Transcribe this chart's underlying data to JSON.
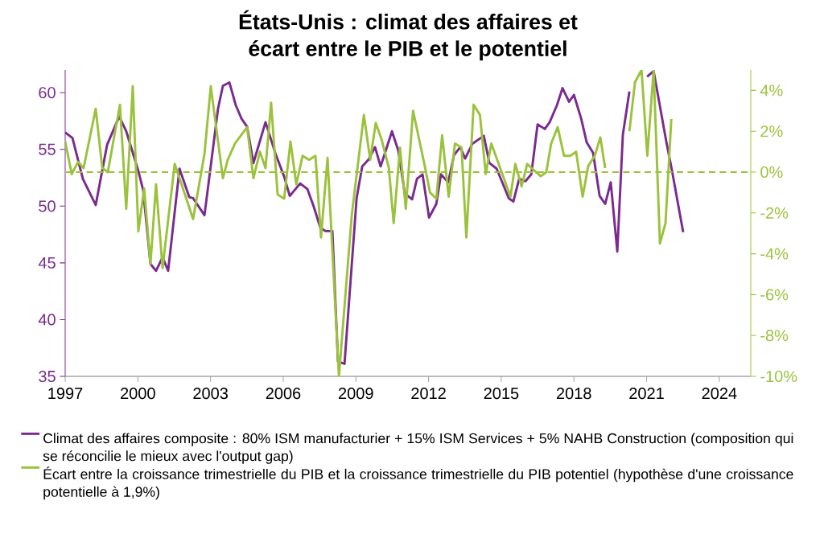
{
  "chart_data": {
    "type": "line",
    "title": "États-Unis : climat des affaires et écart entre le PIB et le potentiel",
    "xlim": [
      1997,
      2025.3
    ],
    "xticks": [
      1997,
      2000,
      2003,
      2006,
      2009,
      2012,
      2015,
      2018,
      2021,
      2024
    ],
    "ylim": [
      35,
      62
    ],
    "yticks": [
      35,
      40,
      45,
      50,
      55,
      60
    ],
    "y2lim": [
      -10,
      5
    ],
    "y2ticks": [
      {
        "value": -10,
        "label": "-10%"
      },
      {
        "value": -8,
        "label": "-8%"
      },
      {
        "value": -6,
        "label": "-6%"
      },
      {
        "value": -4,
        "label": "-4%"
      },
      {
        "value": -2,
        "label": "-2%"
      },
      {
        "value": 0,
        "label": "0%"
      },
      {
        "value": 2,
        "label": "2%"
      },
      {
        "value": 4,
        "label": "4%"
      }
    ],
    "legend": "bottom",
    "ref_lines": [
      {
        "axis": "y2",
        "value": 0,
        "color": "#9bc23c",
        "line_style": "dashed"
      }
    ],
    "series": [
      {
        "name": "Climat des affaires composite : 80% ISM manufacturier + 15% ISM Services + 5% NAHB Construction (composition qui se réconcilie le mieux avec l'output gap)",
        "color": "#7b2a8e",
        "x": [
          1997.0,
          1997.3,
          1997.73,
          1998.26,
          1998.73,
          1999.23,
          1999.52,
          2000.02,
          2000.22,
          2000.52,
          2000.75,
          2001.02,
          2001.25,
          2001.72,
          2002.12,
          2002.28,
          2002.75,
          2003.31,
          2003.51,
          2003.78,
          2004.04,
          2004.28,
          2004.51,
          2004.77,
          2005.27,
          2005.7,
          2006.04,
          2006.27,
          2006.7,
          2007.0,
          2007.27,
          2007.53,
          2007.76,
          2008.03,
          2008.26,
          2008.53,
          2009.03,
          2009.26,
          2009.52,
          2009.79,
          2010.02,
          2010.49,
          2010.75,
          2011.02,
          2011.32,
          2011.52,
          2011.75,
          2012.02,
          2012.32,
          2012.51,
          2012.81,
          2013.05,
          2013.31,
          2013.51,
          2013.81,
          2014.28,
          2014.51,
          2014.81,
          2015.31,
          2015.5,
          2015.74,
          2016.0,
          2016.24,
          2016.5,
          2016.8,
          2017.0,
          2017.3,
          2017.53,
          2017.8,
          2018.0,
          2018.3,
          2018.53,
          2018.79,
          2019.06,
          2019.29,
          2019.52,
          2019.79,
          2020.02,
          2020.29,
          2020.52,
          2020.79,
          2021.02,
          2021.29,
          2021.82,
          2022.05,
          2022.51
        ],
        "values": [
          56.5,
          56.0,
          52.4,
          50.1,
          55.4,
          57.9,
          56.6,
          53.1,
          51.4,
          44.9,
          44.3,
          45.5,
          44.3,
          53.3,
          50.8,
          50.7,
          49.2,
          58.6,
          60.6,
          60.9,
          58.9,
          57.7,
          57.0,
          53.8,
          57.4,
          54.5,
          52.6,
          50.9,
          52.0,
          51.5,
          49.9,
          48.1,
          47.8,
          47.8,
          36.3,
          36.1,
          50.7,
          53.5,
          54.1,
          55.2,
          53.5,
          56.6,
          54.9,
          51.1,
          50.6,
          52.4,
          52.8,
          49.0,
          50.2,
          52.8,
          52.1,
          54.5,
          55.2,
          54.2,
          55.5,
          56.2,
          53.8,
          53.3,
          50.7,
          50.4,
          52.4,
          52.2,
          52.8,
          57.2,
          56.8,
          57.4,
          58.9,
          60.4,
          59.2,
          59.8,
          57.7,
          55.6,
          54.7,
          50.9,
          50.2,
          52.1,
          46.0,
          56.3,
          60.1,
          null,
          null,
          61.4,
          61.9,
          55.6,
          53.1,
          47.7
        ]
      },
      {
        "name": "Écart entre la croissance trimestrielle du PIB et la croissance trimestrielle du PIB potentiel (hypothèse d'une croissance potentielle à 1,9%)",
        "color": "#9bc23c",
        "axis": "y2",
        "x": [
          1997.0,
          1997.27,
          1997.53,
          1997.76,
          1998.26,
          1998.53,
          1998.76,
          1999.26,
          1999.52,
          1999.79,
          2000.02,
          2000.26,
          2000.52,
          2000.75,
          2001.02,
          2001.52,
          2001.72,
          2002.28,
          2002.75,
          2003.01,
          2003.51,
          2003.71,
          2004.01,
          2004.51,
          2004.77,
          2005.04,
          2005.27,
          2005.5,
          2005.77,
          2006.04,
          2006.3,
          2006.54,
          2006.8,
          2007.07,
          2007.33,
          2007.56,
          2007.83,
          2008.3,
          2008.83,
          2009.33,
          2009.59,
          2009.82,
          2010.06,
          2010.36,
          2010.56,
          2010.82,
          2011.06,
          2011.36,
          2011.86,
          2012.06,
          2012.32,
          2012.56,
          2012.83,
          2013.09,
          2013.36,
          2013.56,
          2013.86,
          2014.12,
          2014.36,
          2014.59,
          2015.38,
          2015.58,
          2015.84,
          2016.07,
          2016.34,
          2016.63,
          2016.86,
          2017.06,
          2017.33,
          2017.59,
          2017.86,
          2018.09,
          2018.36,
          2018.59,
          2018.86,
          2019.09,
          2019.29,
          2019.52,
          2019.79,
          2020.02,
          2020.29,
          2020.52,
          2020.79,
          2021.03,
          2021.29,
          2021.55,
          2021.78,
          2022.02
        ],
        "values": [
          1.5,
          -0.1,
          0.5,
          0.2,
          3.1,
          0.2,
          0.0,
          3.3,
          -1.8,
          4.2,
          -2.9,
          -0.8,
          -4.5,
          -0.6,
          -4.7,
          0.4,
          -0.3,
          -2.3,
          0.9,
          4.2,
          -0.3,
          0.6,
          1.4,
          2.2,
          -0.3,
          1.0,
          0.2,
          3.4,
          -1.1,
          -1.3,
          1.5,
          -0.6,
          0.8,
          0.6,
          0.8,
          -3.2,
          0.7,
          -10.0,
          -2.1,
          2.8,
          0.6,
          2.4,
          1.6,
          0.2,
          -2.5,
          1.2,
          -1.8,
          3.0,
          0.2,
          -1.0,
          -1.3,
          1.8,
          -1.2,
          1.4,
          1.2,
          -3.2,
          3.3,
          2.8,
          -0.1,
          1.4,
          -1.2,
          0.4,
          -0.7,
          0.4,
          0.1,
          -0.2,
          0.0,
          1.4,
          2.2,
          0.8,
          0.8,
          1.0,
          -1.2,
          0.3,
          0.8,
          1.7,
          0.2,
          null,
          null,
          null,
          2.0,
          4.4,
          5.0,
          0.8,
          5.0,
          -3.5,
          -2.5,
          2.6
        ]
      }
    ]
  }
}
